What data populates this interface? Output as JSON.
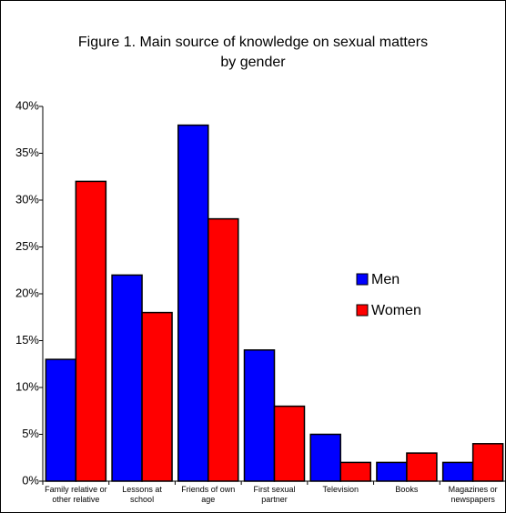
{
  "chart_data": {
    "type": "bar",
    "title": [
      "Figure 1. Main source of knowledge on sexual matters",
      "by gender"
    ],
    "categories": [
      "Family relative or other relative",
      "Lessons at school",
      "Friends of own age",
      "First sexual partner",
      "Television",
      "Books",
      "Magazines or newspapers"
    ],
    "series": [
      {
        "name": "Men",
        "color": "#0000ff",
        "values": [
          13,
          22,
          38,
          14,
          5,
          2,
          2
        ]
      },
      {
        "name": "Women",
        "color": "#ff0000",
        "values": [
          32,
          18,
          28,
          8,
          2,
          3,
          4
        ]
      }
    ],
    "ylim": [
      0,
      40
    ],
    "yticks": [
      {
        "value": 0,
        "label": "0%"
      },
      {
        "value": 5,
        "label": "5%"
      },
      {
        "value": 10,
        "label": "10%"
      },
      {
        "value": 15,
        "label": "15%"
      },
      {
        "value": 20,
        "label": "20%"
      },
      {
        "value": 25,
        "label": "25%"
      },
      {
        "value": 30,
        "label": "30%"
      },
      {
        "value": 35,
        "label": "35%"
      },
      {
        "value": 40,
        "label": "40%"
      }
    ],
    "grid": false,
    "legend": "right"
  }
}
